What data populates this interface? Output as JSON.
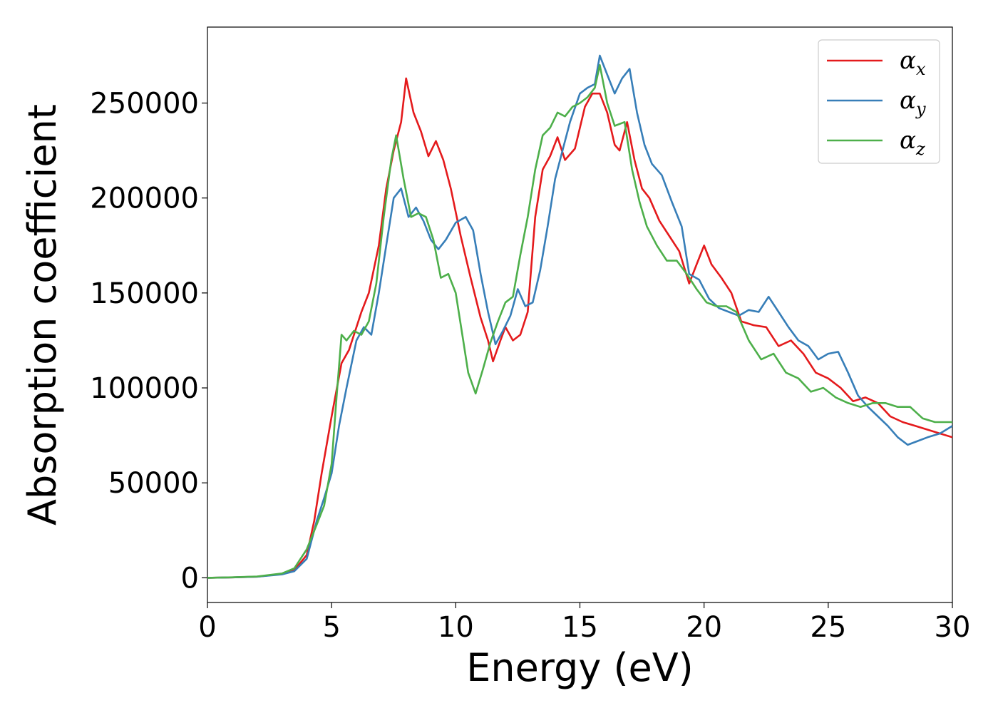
{
  "chart_data": {
    "type": "line",
    "xlabel": "Energy (eV)",
    "ylabel": "Absorption coefficient",
    "xlim": [
      0,
      30
    ],
    "ylim": [
      -13000,
      290000
    ],
    "xticks": [
      0,
      5,
      10,
      15,
      20,
      25,
      30
    ],
    "yticks": [
      0,
      50000,
      100000,
      150000,
      200000,
      250000
    ],
    "grid": false,
    "legend_position": "top-right",
    "series": [
      {
        "name": "α_x",
        "symbol": "α",
        "subscript": "x",
        "color": "#e41a1c",
        "x": [
          0,
          1,
          2,
          3,
          3.5,
          4,
          4.3,
          4.6,
          5,
          5.4,
          5.7,
          6.2,
          6.5,
          6.9,
          7.2,
          7.5,
          7.8,
          8.0,
          8.3,
          8.6,
          8.9,
          9.2,
          9.5,
          9.8,
          10.2,
          10.6,
          11.0,
          11.3,
          11.5,
          11.8,
          12.0,
          12.3,
          12.6,
          12.9,
          13.2,
          13.5,
          13.8,
          14.1,
          14.4,
          14.8,
          15.2,
          15.5,
          15.8,
          16.1,
          16.4,
          16.6,
          16.9,
          17.2,
          17.5,
          17.8,
          18.2,
          18.6,
          19.0,
          19.4,
          19.7,
          20.0,
          20.3,
          20.7,
          21.1,
          21.5,
          22.0,
          22.5,
          23.0,
          23.5,
          24.0,
          24.5,
          25.0,
          25.5,
          26.0,
          26.5,
          27.0,
          27.5,
          28.0,
          28.5,
          29.0,
          29.5,
          30.0
        ],
        "values": [
          0,
          200,
          600,
          2000,
          4000,
          12000,
          30000,
          55000,
          85000,
          113000,
          120000,
          140000,
          150000,
          175000,
          205000,
          225000,
          240000,
          263000,
          245000,
          235000,
          222000,
          230000,
          220000,
          205000,
          180000,
          158000,
          137000,
          125000,
          114000,
          125000,
          132000,
          125000,
          128000,
          140000,
          190000,
          215000,
          222000,
          232000,
          220000,
          226000,
          248000,
          255000,
          255000,
          245000,
          228000,
          225000,
          240000,
          220000,
          205000,
          200000,
          188000,
          180000,
          172000,
          155000,
          165000,
          175000,
          165000,
          158000,
          150000,
          135000,
          133000,
          132000,
          122000,
          125000,
          118000,
          108000,
          105000,
          100000,
          93000,
          95000,
          92000,
          85000,
          82000,
          80000,
          78000,
          76000,
          74000
        ]
      },
      {
        "name": "α_y",
        "symbol": "α",
        "subscript": "y",
        "color": "#377eb8",
        "x": [
          0,
          1,
          2,
          3,
          3.5,
          4,
          4.4,
          4.7,
          5,
          5.3,
          5.6,
          6.0,
          6.3,
          6.6,
          6.9,
          7.2,
          7.5,
          7.8,
          8.1,
          8.4,
          8.7,
          9.0,
          9.3,
          9.6,
          10.0,
          10.4,
          10.7,
          11.0,
          11.3,
          11.6,
          11.9,
          12.2,
          12.5,
          12.8,
          13.1,
          13.4,
          13.7,
          14.0,
          14.3,
          14.6,
          15.0,
          15.3,
          15.6,
          15.8,
          16.1,
          16.4,
          16.7,
          17.0,
          17.3,
          17.6,
          17.9,
          18.3,
          18.7,
          19.1,
          19.4,
          19.8,
          20.2,
          20.6,
          21.0,
          21.4,
          21.8,
          22.2,
          22.6,
          23.0,
          23.4,
          23.8,
          24.2,
          24.6,
          25.0,
          25.4,
          25.8,
          26.2,
          26.6,
          27.0,
          27.4,
          27.8,
          28.2,
          28.6,
          29.0,
          29.5,
          30.0
        ],
        "values": [
          0,
          200,
          600,
          1800,
          3500,
          10000,
          30000,
          42000,
          55000,
          80000,
          100000,
          125000,
          132000,
          128000,
          150000,
          175000,
          200000,
          205000,
          190000,
          195000,
          188000,
          178000,
          173000,
          178000,
          187000,
          190000,
          183000,
          160000,
          140000,
          123000,
          130000,
          138000,
          152000,
          143000,
          145000,
          162000,
          185000,
          210000,
          225000,
          240000,
          255000,
          258000,
          260000,
          275000,
          265000,
          255000,
          263000,
          268000,
          245000,
          228000,
          218000,
          212000,
          198000,
          185000,
          160000,
          157000,
          147000,
          142000,
          140000,
          138000,
          141000,
          140000,
          148000,
          140000,
          132000,
          125000,
          122000,
          115000,
          118000,
          119000,
          108000,
          96000,
          90000,
          85000,
          80000,
          74000,
          70000,
          72000,
          74000,
          76000,
          80000
        ]
      },
      {
        "name": "α_z",
        "symbol": "α",
        "subscript": "z",
        "color": "#4daf4a",
        "x": [
          0,
          1,
          2,
          3,
          3.5,
          4,
          4.4,
          4.7,
          5,
          5.2,
          5.4,
          5.6,
          5.9,
          6.2,
          6.5,
          6.8,
          7.1,
          7.4,
          7.6,
          7.9,
          8.2,
          8.5,
          8.8,
          9.1,
          9.4,
          9.7,
          10.0,
          10.3,
          10.5,
          10.8,
          11.1,
          11.4,
          11.7,
          12.0,
          12.3,
          12.6,
          12.9,
          13.2,
          13.5,
          13.8,
          14.1,
          14.4,
          14.7,
          15.0,
          15.3,
          15.6,
          15.8,
          16.1,
          16.4,
          16.8,
          17.1,
          17.4,
          17.7,
          18.1,
          18.5,
          18.9,
          19.3,
          19.7,
          20.1,
          20.5,
          20.9,
          21.3,
          21.8,
          22.3,
          22.8,
          23.3,
          23.8,
          24.3,
          24.8,
          25.3,
          25.8,
          26.3,
          26.8,
          27.3,
          27.8,
          28.3,
          28.8,
          29.3,
          30.0
        ],
        "values": [
          0,
          250,
          700,
          2300,
          5000,
          15000,
          28000,
          38000,
          60000,
          95000,
          128000,
          125000,
          130000,
          128000,
          135000,
          155000,
          190000,
          220000,
          233000,
          210000,
          190000,
          192000,
          190000,
          178000,
          158000,
          160000,
          150000,
          125000,
          108000,
          97000,
          110000,
          124000,
          135000,
          145000,
          148000,
          170000,
          190000,
          215000,
          233000,
          237000,
          245000,
          243000,
          248000,
          250000,
          253000,
          258000,
          270000,
          250000,
          238000,
          240000,
          215000,
          198000,
          185000,
          175000,
          167000,
          167000,
          160000,
          152000,
          145000,
          143000,
          143000,
          140000,
          125000,
          115000,
          118000,
          108000,
          105000,
          98000,
          100000,
          95000,
          92000,
          90000,
          92000,
          92000,
          90000,
          90000,
          84000,
          82000,
          82000
        ]
      }
    ]
  }
}
